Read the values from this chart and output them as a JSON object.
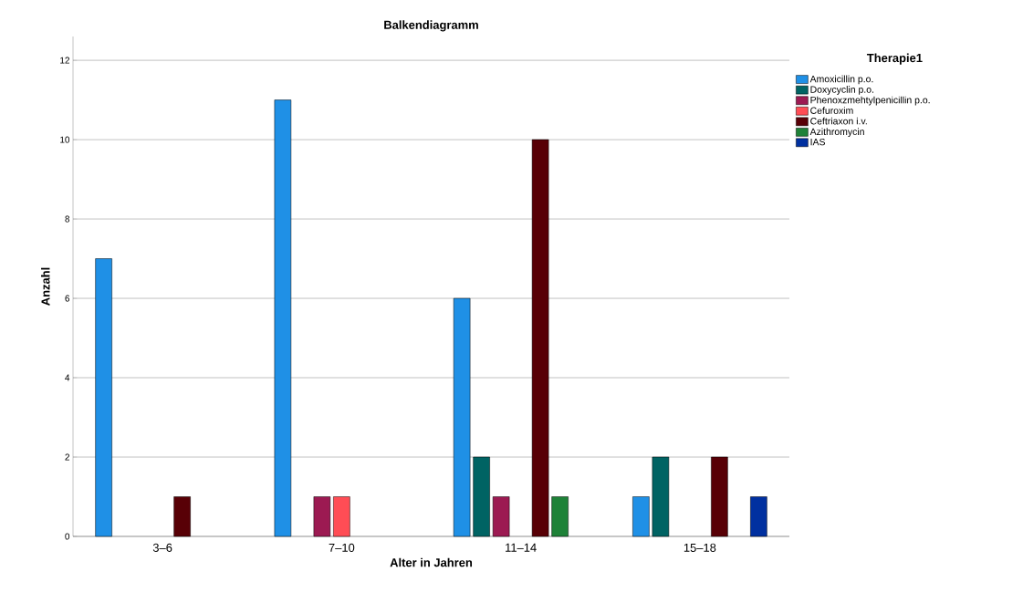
{
  "chart_data": {
    "type": "bar",
    "title": "Balkendiagramm",
    "xlabel": "Alter in Jahren",
    "ylabel": "Anzahl",
    "legend_title": "Therapie1",
    "categories": [
      "3–6",
      "7–10",
      "11–14",
      "15–18"
    ],
    "series": [
      {
        "name": "Amoxicillin p.o.",
        "color": "#1f90e6",
        "values": [
          7,
          11,
          6,
          1
        ]
      },
      {
        "name": "Doxycyclin p.o.",
        "color": "#006363",
        "values": [
          null,
          null,
          2,
          2
        ]
      },
      {
        "name": "Phenoxzmehtylpenicillin p.o.",
        "color": "#9c1a52",
        "values": [
          null,
          1,
          1,
          null
        ]
      },
      {
        "name": "Cefuroxim",
        "color": "#ff4d55",
        "values": [
          null,
          1,
          null,
          null
        ]
      },
      {
        "name": "Ceftriaxon i.v.",
        "color": "#580006",
        "values": [
          1,
          null,
          10,
          2
        ]
      },
      {
        "name": "Azithromycin",
        "color": "#1e8238",
        "values": [
          null,
          null,
          1,
          null
        ]
      },
      {
        "name": "IAS",
        "color": "#0030a0",
        "values": [
          null,
          null,
          null,
          1
        ]
      }
    ],
    "ylim": [
      0,
      12.6
    ],
    "yticks": [
      0,
      2,
      4,
      6,
      8,
      10,
      12
    ],
    "grid": "y",
    "legend": "right"
  }
}
